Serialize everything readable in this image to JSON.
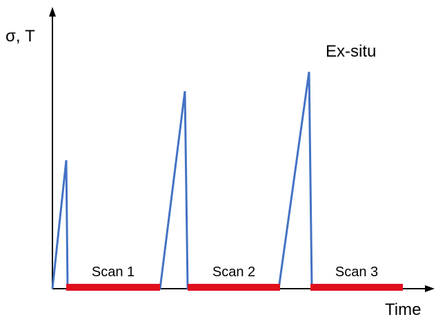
{
  "chart": {
    "y_label": "σ, T",
    "x_label": "Time",
    "title": "Ex-situ",
    "line_color": "#4472c4",
    "bar_color": "#e0101d",
    "axis_color": "#000000"
  },
  "scans": [
    {
      "label": "Scan 1"
    },
    {
      "label": "Scan 2"
    },
    {
      "label": "Scan 3"
    }
  ]
}
